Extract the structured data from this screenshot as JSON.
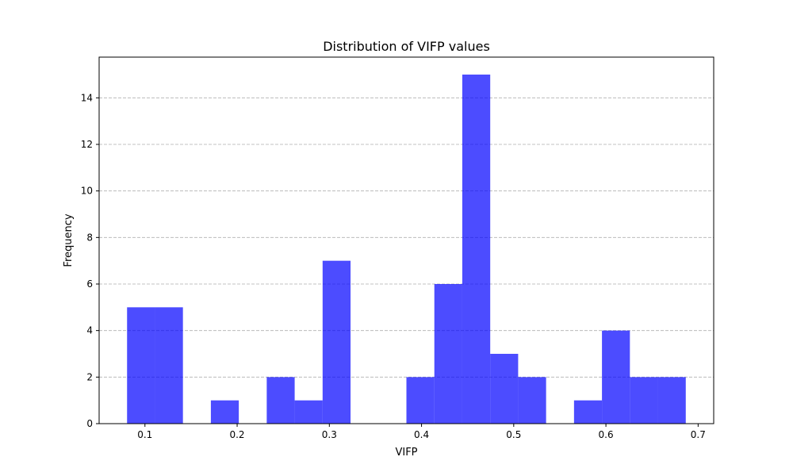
{
  "chart_data": {
    "type": "bar",
    "title": "Distribution of VIFP values",
    "xlabel": "VIFP",
    "ylabel": "Frequency",
    "bin_width": 0.0303,
    "bins": [
      {
        "x0": 0.0806,
        "x1": 0.1109,
        "count": 5
      },
      {
        "x0": 0.1109,
        "x1": 0.1412,
        "count": 5
      },
      {
        "x0": 0.1412,
        "x1": 0.1715,
        "count": 0
      },
      {
        "x0": 0.1715,
        "x1": 0.2018,
        "count": 1
      },
      {
        "x0": 0.2018,
        "x1": 0.2321,
        "count": 0
      },
      {
        "x0": 0.2321,
        "x1": 0.2624,
        "count": 2
      },
      {
        "x0": 0.2624,
        "x1": 0.2927,
        "count": 1
      },
      {
        "x0": 0.2927,
        "x1": 0.323,
        "count": 7
      },
      {
        "x0": 0.323,
        "x1": 0.3533,
        "count": 0
      },
      {
        "x0": 0.3533,
        "x1": 0.3836,
        "count": 0
      },
      {
        "x0": 0.3836,
        "x1": 0.4139,
        "count": 2
      },
      {
        "x0": 0.4139,
        "x1": 0.4442,
        "count": 6
      },
      {
        "x0": 0.4442,
        "x1": 0.4745,
        "count": 15
      },
      {
        "x0": 0.4745,
        "x1": 0.5048,
        "count": 3
      },
      {
        "x0": 0.5048,
        "x1": 0.5351,
        "count": 2
      },
      {
        "x0": 0.5351,
        "x1": 0.5654,
        "count": 0
      },
      {
        "x0": 0.5654,
        "x1": 0.5957,
        "count": 1
      },
      {
        "x0": 0.5957,
        "x1": 0.626,
        "count": 4
      },
      {
        "x0": 0.626,
        "x1": 0.6563,
        "count": 2
      },
      {
        "x0": 0.6563,
        "x1": 0.6866,
        "count": 2
      }
    ],
    "xlim": [
      0.0503,
      0.7169
    ],
    "ylim": [
      0,
      15.75
    ],
    "xticks": [
      0.1,
      0.2,
      0.3,
      0.4,
      0.5,
      0.6,
      0.7
    ],
    "xtick_labels": [
      "0.1",
      "0.2",
      "0.3",
      "0.4",
      "0.5",
      "0.6",
      "0.7"
    ],
    "yticks": [
      0,
      2,
      4,
      6,
      8,
      10,
      12,
      14
    ],
    "ytick_labels": [
      "0",
      "2",
      "4",
      "6",
      "8",
      "10",
      "12",
      "14"
    ],
    "grid": {
      "axis": "y",
      "style": "dashed",
      "color": "#b0b0b0"
    },
    "bar_color": "#0000ff",
    "bar_alpha": 0.7,
    "legend": "none"
  }
}
